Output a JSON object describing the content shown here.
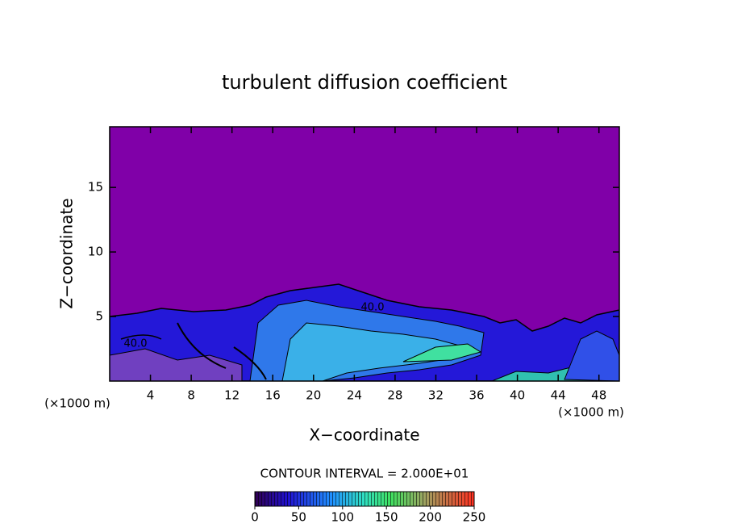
{
  "chart_data": {
    "type": "contour",
    "title": "turbulent diffusion coefficient",
    "xlabel": "X−coordinate",
    "ylabel": "Z−coordinate",
    "x_unit": "(×1000 m)",
    "y_unit": "(×1000 m)",
    "xlim": [
      0,
      50
    ],
    "xticks": [
      4,
      8,
      12,
      16,
      20,
      24,
      28,
      32,
      36,
      40,
      44,
      48
    ],
    "ylim": [
      0,
      19.7
    ],
    "yticks": [
      5,
      10,
      15
    ],
    "contour_labels": [
      "40.0",
      "40.0"
    ],
    "contour_interval": "CONTOUR INTERVAL = 2.000E+01",
    "clim": [
      0,
      250
    ],
    "cticks": [
      0,
      50,
      100,
      150,
      200,
      250
    ]
  }
}
